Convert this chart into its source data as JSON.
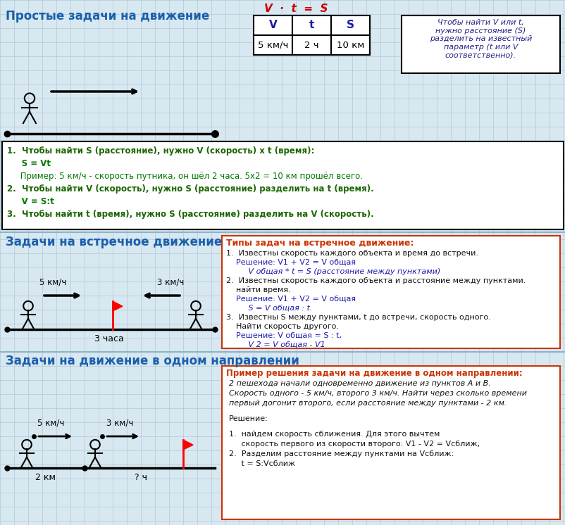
{
  "bg_color": "#d8e8f0",
  "grid_color": "#b0c8da",
  "title1": "Простые задачи на движение",
  "title2": "Задачи на встречное движение",
  "title3": "Задачи на движение в одном направлении",
  "formula_top": "V  ·  t  =  S",
  "table_headers": [
    "V",
    "t",
    "S"
  ],
  "table_values": [
    "5 км/ч",
    "2 ч",
    "10 км"
  ],
  "note_text": "Чтобы найти V или t,\nнужно расстояние (S)\nразделить на известный\nпараметр (t или V\nсоответственно).",
  "text_box1_lines": [
    [
      "1.  Чтобы найти S (расстояние), нужно V (скорость) х t (время):",
      "bold",
      "#1a6600"
    ],
    [
      "     S = Vt",
      "bold",
      "#007700"
    ],
    [
      "     Пример: 5 км/ч - скорость путника, он шёл 2 часа. 5х2 = 10 км прошёл всего.",
      "normal",
      "#007700"
    ],
    [
      "2.  Чтобы найти V (скорость), нужно S (расстояние) разделить на t (время).",
      "bold",
      "#1a6600"
    ],
    [
      "     V = S:t",
      "bold",
      "#007700"
    ],
    [
      "3.  Чтобы найти t (время), нужно S (расстояние) разделить на V (скорость).",
      "bold",
      "#1a6600"
    ]
  ],
  "meeting_speed1": "5 км/ч",
  "meeting_speed2": "3 км/ч",
  "meeting_time": "3 часа",
  "meeting_types_title": "Типы задач на встречное движение:",
  "meeting_types_lines": [
    [
      "1.  Известны скорость каждого объекта и время до встречи.",
      "normal",
      "#111111"
    ],
    [
      "    Решение: V1 + V2 = V общая",
      "normal",
      "#1a1aaa"
    ],
    [
      "         V общая * t = S (расстояние между пунктами)",
      "italic",
      "#1a1aaa"
    ],
    [
      "2.  Известны скорость каждого объекта и расстояние между пунктами.",
      "normal",
      "#111111"
    ],
    [
      "    найти время.",
      "normal",
      "#111111"
    ],
    [
      "    Решение: V1 + V2 = V общая",
      "normal",
      "#1a1aaa"
    ],
    [
      "         S = V общая : t.",
      "italic",
      "#1a1aaa"
    ],
    [
      "3.  Известны S между пунктами, t до встречи, скорость одного.",
      "normal",
      "#111111"
    ],
    [
      "    Найти скорость другого.",
      "normal",
      "#111111"
    ],
    [
      "    Решение: V общая = S : t,",
      "normal",
      "#1a1aaa"
    ],
    [
      "         V 2 = V общая - V1",
      "italic",
      "#1a1aaa"
    ]
  ],
  "same_dir_speed1": "5 км/ч",
  "same_dir_speed2": "3 км/ч",
  "same_dir_dist": "2 км",
  "same_dir_time": "? ч",
  "same_dir_box_title": "Пример решения задачи на движение в одном направлении:",
  "same_dir_box_lines": [
    [
      "2 пешехода начали одновременно движение из пунктов А и В.",
      "italic",
      "#111111"
    ],
    [
      "Скорость одного - 5 км/ч, второго 3 км/ч. Найти через сколько времени",
      "italic",
      "#111111"
    ],
    [
      "первый догонит второго, если расстояние между пунктами - 2 км.",
      "italic",
      "#111111"
    ],
    [
      "",
      "normal",
      "#111111"
    ],
    [
      "Решение:",
      "normal",
      "#111111"
    ],
    [
      "",
      "normal",
      "#111111"
    ],
    [
      "1.  найдем скорость сближения. Для этого вычтем",
      "normal",
      "#111111"
    ],
    [
      "     скорость первого из скорости второго: V1 - V2 = Vcближ,",
      "normal",
      "#111111"
    ],
    [
      "2.  Разделим расстояние между пунктами на Vcближ:",
      "normal",
      "#111111"
    ],
    [
      "     t = S:Vcближ",
      "normal",
      "#111111"
    ]
  ]
}
